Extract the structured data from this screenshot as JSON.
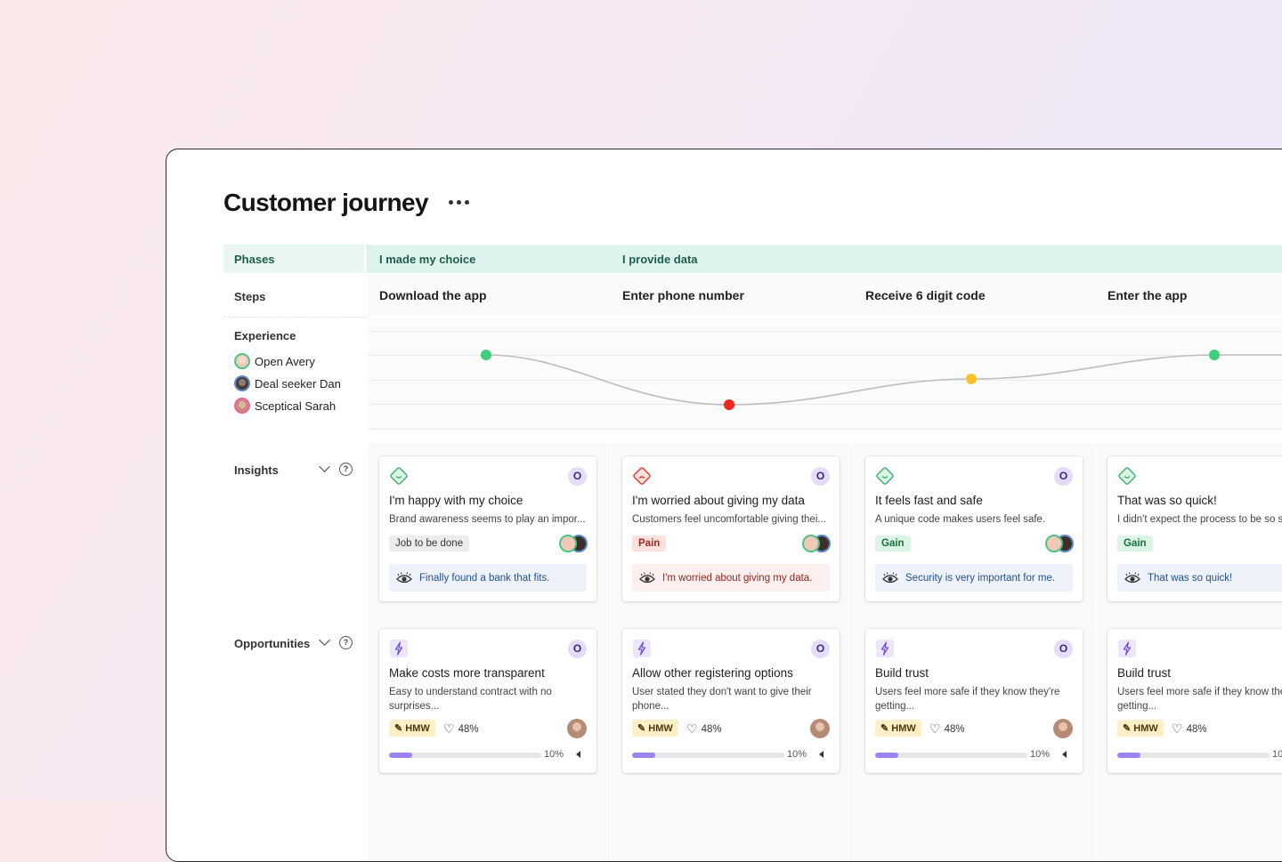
{
  "page": {
    "title": "Customer journey"
  },
  "rows": {
    "phases": "Phases",
    "steps": "Steps",
    "experience": "Experience",
    "insights": "Insights",
    "opportunities": "Opportunities"
  },
  "phases": [
    "I made my choice",
    "I provide data"
  ],
  "steps": [
    "Download the app",
    "Enter phone number",
    "Receive 6 digit code",
    "Enter the app"
  ],
  "personas": [
    {
      "name": "Open Avery",
      "ring_color": "#4fc386"
    },
    {
      "name": "Deal seeker Dan",
      "ring_color": "#5b89c8"
    },
    {
      "name": "Sceptical Sarah",
      "ring_color": "#e5679b"
    }
  ],
  "experience_points": [
    {
      "step": "Download the app",
      "sentiment": "positive",
      "color": "#3fcf7a"
    },
    {
      "step": "Enter phone number",
      "sentiment": "negative",
      "color": "#f2271c"
    },
    {
      "step": "Receive 6 digit code",
      "sentiment": "neutral",
      "color": "#fbc12d"
    },
    {
      "step": "Enter the app",
      "sentiment": "positive",
      "color": "#3fcf7a"
    }
  ],
  "insights": [
    {
      "mood": "happy",
      "badge": "O",
      "title": "I'm happy with my choice",
      "desc": "Brand awareness seems to play an impor...",
      "tag": "Job to be done",
      "tag_type": "job",
      "quote": "Finally found a bank that fits.",
      "quote_type": "blue"
    },
    {
      "mood": "sad",
      "badge": "O",
      "title": "I'm worried about giving my data",
      "desc": "Customers feel uncomfortable giving thei...",
      "tag": "Pain",
      "tag_type": "pain",
      "quote": "I'm worried about giving my data.",
      "quote_type": "red"
    },
    {
      "mood": "happy",
      "badge": "O",
      "title": "It feels fast and safe",
      "desc": "A unique code makes users feel safe.",
      "tag": "Gain",
      "tag_type": "gain",
      "quote": "Security is very important for me.",
      "quote_type": "blue"
    },
    {
      "mood": "happy",
      "badge": "",
      "title": "That was so quick!",
      "desc": "I didn't expect the process to be so s",
      "tag": "Gain",
      "tag_type": "gain",
      "quote": "That was so quick!",
      "quote_type": "blue"
    }
  ],
  "opportunities": [
    {
      "badge": "O",
      "title": "Make costs more transparent",
      "desc": "Easy to understand contract with no surprises...",
      "hmw": "HMW",
      "likes": "48%",
      "progress": 0.1,
      "progress_label": "10%"
    },
    {
      "badge": "O",
      "title": "Allow other registering options",
      "desc": "User stated they don't want to give their phone...",
      "hmw": "HMW",
      "likes": "48%",
      "progress": 0.1,
      "progress_label": "10%"
    },
    {
      "badge": "O",
      "title": "Build trust",
      "desc": "Users feel more safe if they know they're getting...",
      "hmw": "HMW",
      "likes": "48%",
      "progress": 0.1,
      "progress_label": "10%"
    },
    {
      "badge": "",
      "title": "Build trust",
      "desc": "Users feel more safe if they know the getting...",
      "hmw": "HMW",
      "likes": "48%",
      "progress": 0.1,
      "progress_label": "10"
    }
  ]
}
